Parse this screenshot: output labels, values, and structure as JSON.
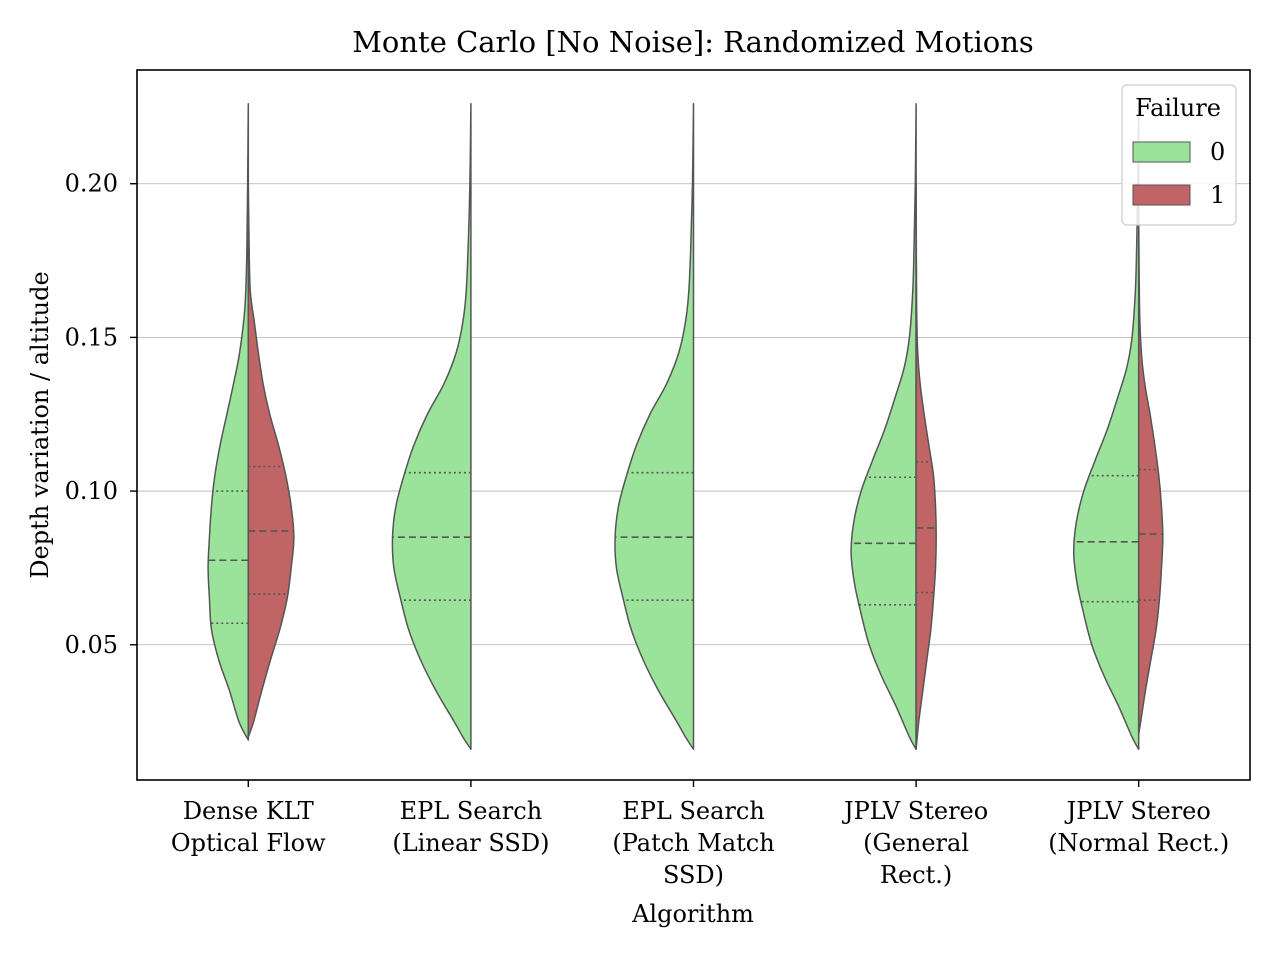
{
  "chart_data": {
    "type": "violin",
    "title": "Monte Carlo [No Noise]: Randomized Motions",
    "xlabel": "Algorithm",
    "ylabel": "Depth variation / altitude",
    "ylim": [
      0.006,
      0.237
    ],
    "y_ticks": [
      "0.05",
      "0.10",
      "0.15",
      "0.20"
    ],
    "y_tick_values": [
      0.05,
      0.1,
      0.15,
      0.2
    ],
    "grid": true,
    "legend_position": "top-right",
    "legend": {
      "title": "Failure",
      "entries": [
        "0",
        "1"
      ]
    },
    "colors": {
      "0": "#9be39b",
      "1": "#c16465",
      "edge": "#555555",
      "grid": "#b0b0b0"
    },
    "categories": [
      [
        "Dense KLT",
        "Optical Flow"
      ],
      [
        "EPL Search",
        "(Linear SSD)"
      ],
      [
        "EPL Search",
        "(Patch Match",
        "SSD)"
      ],
      [
        "JPLV Stereo",
        "(General",
        "Rect.)"
      ],
      [
        "JPLV Stereo",
        "(Normal Rect.)"
      ]
    ],
    "series": [
      {
        "name": "0",
        "side": "left",
        "violins": [
          {
            "ymin": 0.019,
            "ymax": 0.226,
            "q1": 0.057,
            "median": 0.0775,
            "q3": 0.1,
            "profile": [
              [
                0.019,
                0.0
              ],
              [
                0.025,
                0.14
              ],
              [
                0.035,
                0.28
              ],
              [
                0.045,
                0.44
              ],
              [
                0.055,
                0.55
              ],
              [
                0.065,
                0.58
              ],
              [
                0.075,
                0.6
              ],
              [
                0.085,
                0.58
              ],
              [
                0.095,
                0.55
              ],
              [
                0.105,
                0.5
              ],
              [
                0.115,
                0.42
              ],
              [
                0.125,
                0.32
              ],
              [
                0.135,
                0.22
              ],
              [
                0.145,
                0.13
              ],
              [
                0.16,
                0.05
              ],
              [
                0.18,
                0.02
              ],
              [
                0.226,
                0.0
              ]
            ]
          },
          {
            "ymin": 0.016,
            "ymax": 0.226,
            "q1": 0.0645,
            "median": 0.085,
            "q3": 0.106,
            "profile": [
              [
                0.016,
                0.0
              ],
              [
                0.02,
                0.12
              ],
              [
                0.025,
                0.25
              ],
              [
                0.035,
                0.52
              ],
              [
                0.045,
                0.75
              ],
              [
                0.055,
                0.93
              ],
              [
                0.065,
                1.05
              ],
              [
                0.075,
                1.15
              ],
              [
                0.085,
                1.17
              ],
              [
                0.095,
                1.12
              ],
              [
                0.105,
                1.0
              ],
              [
                0.115,
                0.85
              ],
              [
                0.125,
                0.65
              ],
              [
                0.135,
                0.4
              ],
              [
                0.145,
                0.22
              ],
              [
                0.155,
                0.12
              ],
              [
                0.165,
                0.07
              ],
              [
                0.18,
                0.04
              ],
              [
                0.2,
                0.015
              ],
              [
                0.226,
                0.0
              ]
            ]
          },
          {
            "ymin": 0.016,
            "ymax": 0.226,
            "q1": 0.0645,
            "median": 0.085,
            "q3": 0.106,
            "profile": [
              [
                0.016,
                0.0
              ],
              [
                0.02,
                0.12
              ],
              [
                0.025,
                0.25
              ],
              [
                0.035,
                0.52
              ],
              [
                0.045,
                0.75
              ],
              [
                0.055,
                0.93
              ],
              [
                0.065,
                1.05
              ],
              [
                0.075,
                1.15
              ],
              [
                0.085,
                1.17
              ],
              [
                0.095,
                1.12
              ],
              [
                0.105,
                1.0
              ],
              [
                0.115,
                0.85
              ],
              [
                0.125,
                0.65
              ],
              [
                0.135,
                0.4
              ],
              [
                0.145,
                0.22
              ],
              [
                0.155,
                0.12
              ],
              [
                0.165,
                0.07
              ],
              [
                0.18,
                0.04
              ],
              [
                0.2,
                0.015
              ],
              [
                0.226,
                0.0
              ]
            ]
          },
          {
            "ymin": 0.016,
            "ymax": 0.226,
            "q1": 0.063,
            "median": 0.083,
            "q3": 0.1045,
            "profile": [
              [
                0.016,
                0.0
              ],
              [
                0.02,
                0.1
              ],
              [
                0.03,
                0.3
              ],
              [
                0.04,
                0.52
              ],
              [
                0.05,
                0.7
              ],
              [
                0.06,
                0.82
              ],
              [
                0.07,
                0.92
              ],
              [
                0.08,
                0.97
              ],
              [
                0.09,
                0.93
              ],
              [
                0.1,
                0.82
              ],
              [
                0.11,
                0.65
              ],
              [
                0.12,
                0.47
              ],
              [
                0.13,
                0.32
              ],
              [
                0.14,
                0.18
              ],
              [
                0.15,
                0.1
              ],
              [
                0.165,
                0.05
              ],
              [
                0.18,
                0.03
              ],
              [
                0.2,
                0.012
              ],
              [
                0.226,
                0.0
              ]
            ]
          },
          {
            "ymin": 0.016,
            "ymax": 0.226,
            "q1": 0.064,
            "median": 0.0835,
            "q3": 0.105,
            "profile": [
              [
                0.016,
                0.0
              ],
              [
                0.02,
                0.1
              ],
              [
                0.03,
                0.3
              ],
              [
                0.04,
                0.52
              ],
              [
                0.05,
                0.7
              ],
              [
                0.06,
                0.82
              ],
              [
                0.07,
                0.92
              ],
              [
                0.08,
                0.97
              ],
              [
                0.09,
                0.93
              ],
              [
                0.1,
                0.82
              ],
              [
                0.11,
                0.65
              ],
              [
                0.12,
                0.47
              ],
              [
                0.13,
                0.32
              ],
              [
                0.14,
                0.18
              ],
              [
                0.15,
                0.1
              ],
              [
                0.165,
                0.05
              ],
              [
                0.18,
                0.03
              ],
              [
                0.2,
                0.012
              ],
              [
                0.226,
                0.0
              ]
            ]
          }
        ]
      },
      {
        "name": "1",
        "side": "right",
        "violins": [
          {
            "ymin": 0.02,
            "ymax": 0.2,
            "q1": 0.0665,
            "median": 0.087,
            "q3": 0.108,
            "profile": [
              [
                0.02,
                0.0
              ],
              [
                0.025,
                0.08
              ],
              [
                0.035,
                0.2
              ],
              [
                0.045,
                0.33
              ],
              [
                0.055,
                0.47
              ],
              [
                0.065,
                0.58
              ],
              [
                0.075,
                0.64
              ],
              [
                0.085,
                0.68
              ],
              [
                0.095,
                0.64
              ],
              [
                0.105,
                0.56
              ],
              [
                0.115,
                0.45
              ],
              [
                0.125,
                0.32
              ],
              [
                0.135,
                0.22
              ],
              [
                0.145,
                0.15
              ],
              [
                0.155,
                0.09
              ],
              [
                0.165,
                0.03
              ],
              [
                0.18,
                0.012
              ],
              [
                0.2,
                0.0
              ]
            ]
          },
          null,
          null,
          {
            "ymin": 0.016,
            "ymax": 0.2,
            "q1": 0.067,
            "median": 0.088,
            "q3": 0.1095,
            "profile": [
              [
                0.016,
                0.0
              ],
              [
                0.025,
                0.04
              ],
              [
                0.035,
                0.1
              ],
              [
                0.045,
                0.16
              ],
              [
                0.055,
                0.22
              ],
              [
                0.065,
                0.26
              ],
              [
                0.075,
                0.29
              ],
              [
                0.085,
                0.3
              ],
              [
                0.095,
                0.29
              ],
              [
                0.105,
                0.26
              ],
              [
                0.115,
                0.19
              ],
              [
                0.125,
                0.12
              ],
              [
                0.135,
                0.06
              ],
              [
                0.145,
                0.025
              ],
              [
                0.16,
                0.008
              ],
              [
                0.2,
                0.0
              ]
            ]
          },
          {
            "ymin": 0.021,
            "ymax": 0.19,
            "q1": 0.0645,
            "median": 0.086,
            "q3": 0.107,
            "profile": [
              [
                0.021,
                0.0
              ],
              [
                0.025,
                0.03
              ],
              [
                0.035,
                0.1
              ],
              [
                0.045,
                0.18
              ],
              [
                0.055,
                0.26
              ],
              [
                0.065,
                0.31
              ],
              [
                0.075,
                0.34
              ],
              [
                0.085,
                0.36
              ],
              [
                0.095,
                0.34
              ],
              [
                0.105,
                0.3
              ],
              [
                0.115,
                0.24
              ],
              [
                0.125,
                0.17
              ],
              [
                0.135,
                0.09
              ],
              [
                0.145,
                0.04
              ],
              [
                0.16,
                0.012
              ],
              [
                0.19,
                0.0
              ]
            ]
          }
        ]
      }
    ]
  }
}
